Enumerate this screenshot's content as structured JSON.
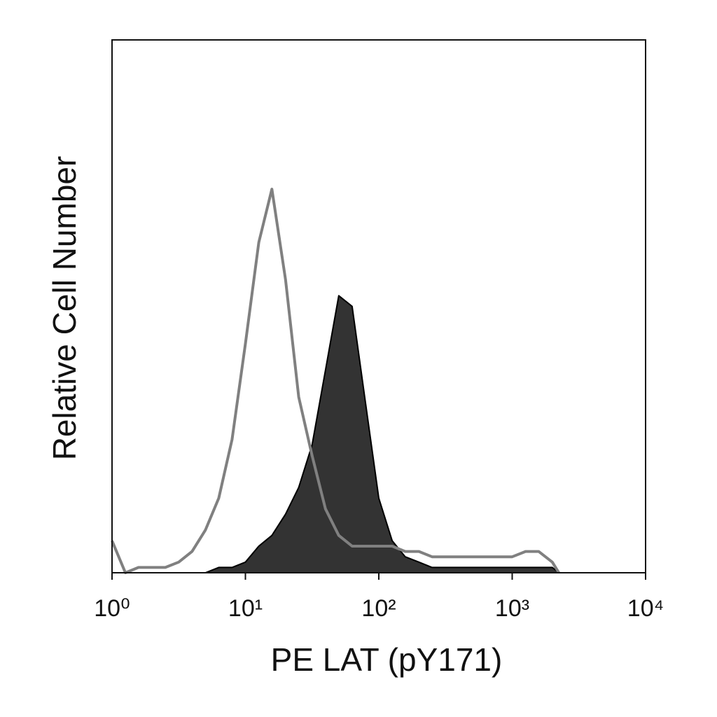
{
  "chart_data": {
    "type": "histogram-overlay",
    "xlabel": "PE LAT (pY171)",
    "ylabel": "Relative Cell Number",
    "xscale": "log",
    "xlim": [
      1,
      10000
    ],
    "ylim": [
      0,
      100
    ],
    "xticks": [
      {
        "value": 1,
        "label": "10⁰"
      },
      {
        "value": 10,
        "label": "10¹"
      },
      {
        "value": 100,
        "label": "10²"
      },
      {
        "value": 1000,
        "label": "10³"
      },
      {
        "value": 10000,
        "label": "10⁴"
      }
    ],
    "x": [
      1,
      1.26,
      1.58,
      2,
      2.51,
      3.16,
      3.98,
      5.01,
      6.31,
      7.94,
      10,
      12.6,
      15.8,
      20,
      25.1,
      31.6,
      39.8,
      50.1,
      63.1,
      79.4,
      100,
      126,
      158,
      200,
      251,
      316,
      398,
      501,
      631,
      794,
      1000,
      1260,
      1580,
      2000,
      2240
    ],
    "series": [
      {
        "style": "outline",
        "color": "#808080",
        "values": [
          6,
          0,
          1,
          1,
          1,
          2,
          4,
          8,
          14,
          25,
          43,
          62,
          72,
          55,
          33,
          22,
          12,
          7,
          5,
          5,
          5,
          5,
          4,
          4,
          3,
          3,
          3,
          3,
          3,
          3,
          3,
          4,
          4,
          2,
          0
        ]
      },
      {
        "style": "filled",
        "color": "#333333",
        "values": [
          0,
          0,
          0,
          0,
          0,
          0,
          0,
          0,
          1,
          1,
          2,
          5,
          7,
          11,
          16,
          24,
          38,
          52,
          50,
          32,
          14,
          6,
          3,
          2,
          1,
          1,
          1,
          1,
          1,
          1,
          1,
          1,
          1,
          1,
          0
        ]
      }
    ]
  }
}
